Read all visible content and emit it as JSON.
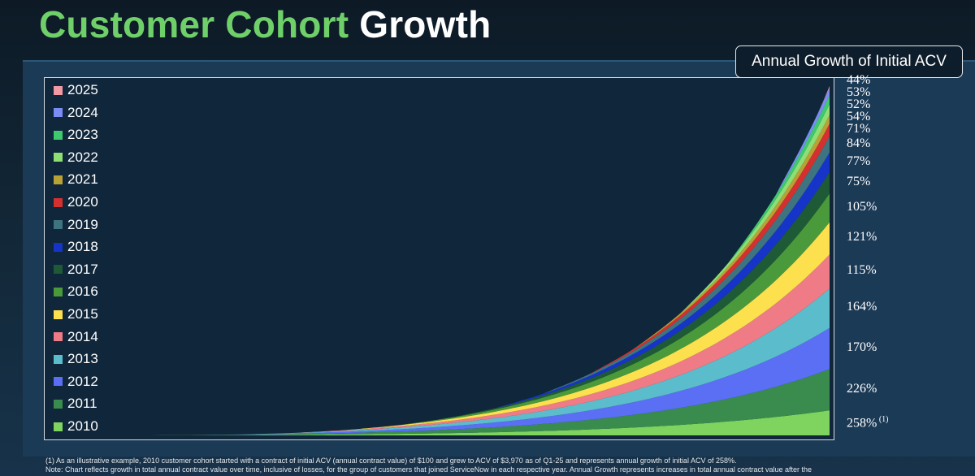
{
  "title": {
    "part1": "Customer Cohort",
    "part2": "Growth"
  },
  "annual_growth_box": "Annual Growth of Initial ACV",
  "footnote": {
    "line1": "(1) As an illustrative example, 2010 customer cohort started with a contract of initial ACV (annual contract value) of $100 and grew to ACV of $3,970 as of Q1-25 and represents annual growth of initial ACV of 258%.",
    "line2": "Note: Chart reflects growth in total annual contract value over time, inclusive of losses, for the group of customers that joined ServiceNow in each respective year.  Annual Growth represents increases in total annual contract value after the"
  },
  "chart_data": {
    "type": "area",
    "stacked": true,
    "grid": false,
    "legend_position": "top-left",
    "x_start": "2010",
    "x_end": "Q1-25",
    "series": [
      {
        "name": "2010",
        "color": "#7ed45f",
        "start": 0.0,
        "final": 0.07,
        "growth": "258%",
        "growth_note": "(1)"
      },
      {
        "name": "2011",
        "color": "#3a8c4e",
        "start": 0.05,
        "final": 0.115,
        "growth": "226%"
      },
      {
        "name": "2012",
        "color": "#5b6ff5",
        "start": 0.12,
        "final": 0.115,
        "growth": "170%"
      },
      {
        "name": "2013",
        "color": "#5bbccc",
        "start": 0.19,
        "final": 0.11,
        "growth": "164%"
      },
      {
        "name": "2014",
        "color": "#ef7b86",
        "start": 0.26,
        "final": 0.095,
        "growth": "115%"
      },
      {
        "name": "2015",
        "color": "#fde04d",
        "start": 0.33,
        "final": 0.09,
        "growth": "121%"
      },
      {
        "name": "2016",
        "color": "#4a9a3b",
        "start": 0.4,
        "final": 0.08,
        "growth": "105%"
      },
      {
        "name": "2017",
        "color": "#1e5a36",
        "start": 0.47,
        "final": 0.06,
        "growth": "75%"
      },
      {
        "name": "2018",
        "color": "#1734c8",
        "start": 0.535,
        "final": 0.055,
        "growth": "77%"
      },
      {
        "name": "2019",
        "color": "#3e7480",
        "start": 0.6,
        "final": 0.045,
        "growth": "84%"
      },
      {
        "name": "2020",
        "color": "#d4302f",
        "start": 0.665,
        "final": 0.035,
        "growth": "71%"
      },
      {
        "name": "2021",
        "color": "#b8a236",
        "start": 0.73,
        "final": 0.025,
        "growth": "54%"
      },
      {
        "name": "2022",
        "color": "#8fde74",
        "start": 0.795,
        "final": 0.03,
        "growth": "52%"
      },
      {
        "name": "2023",
        "color": "#3ec96f",
        "start": 0.86,
        "final": 0.025,
        "growth": "53%"
      },
      {
        "name": "2024",
        "color": "#7b8cf5",
        "start": 0.925,
        "final": 0.02,
        "growth": "44%"
      },
      {
        "name": "2025",
        "color": "#f19aa6",
        "start": 0.99,
        "final": 0.005,
        "growth": ""
      }
    ]
  }
}
